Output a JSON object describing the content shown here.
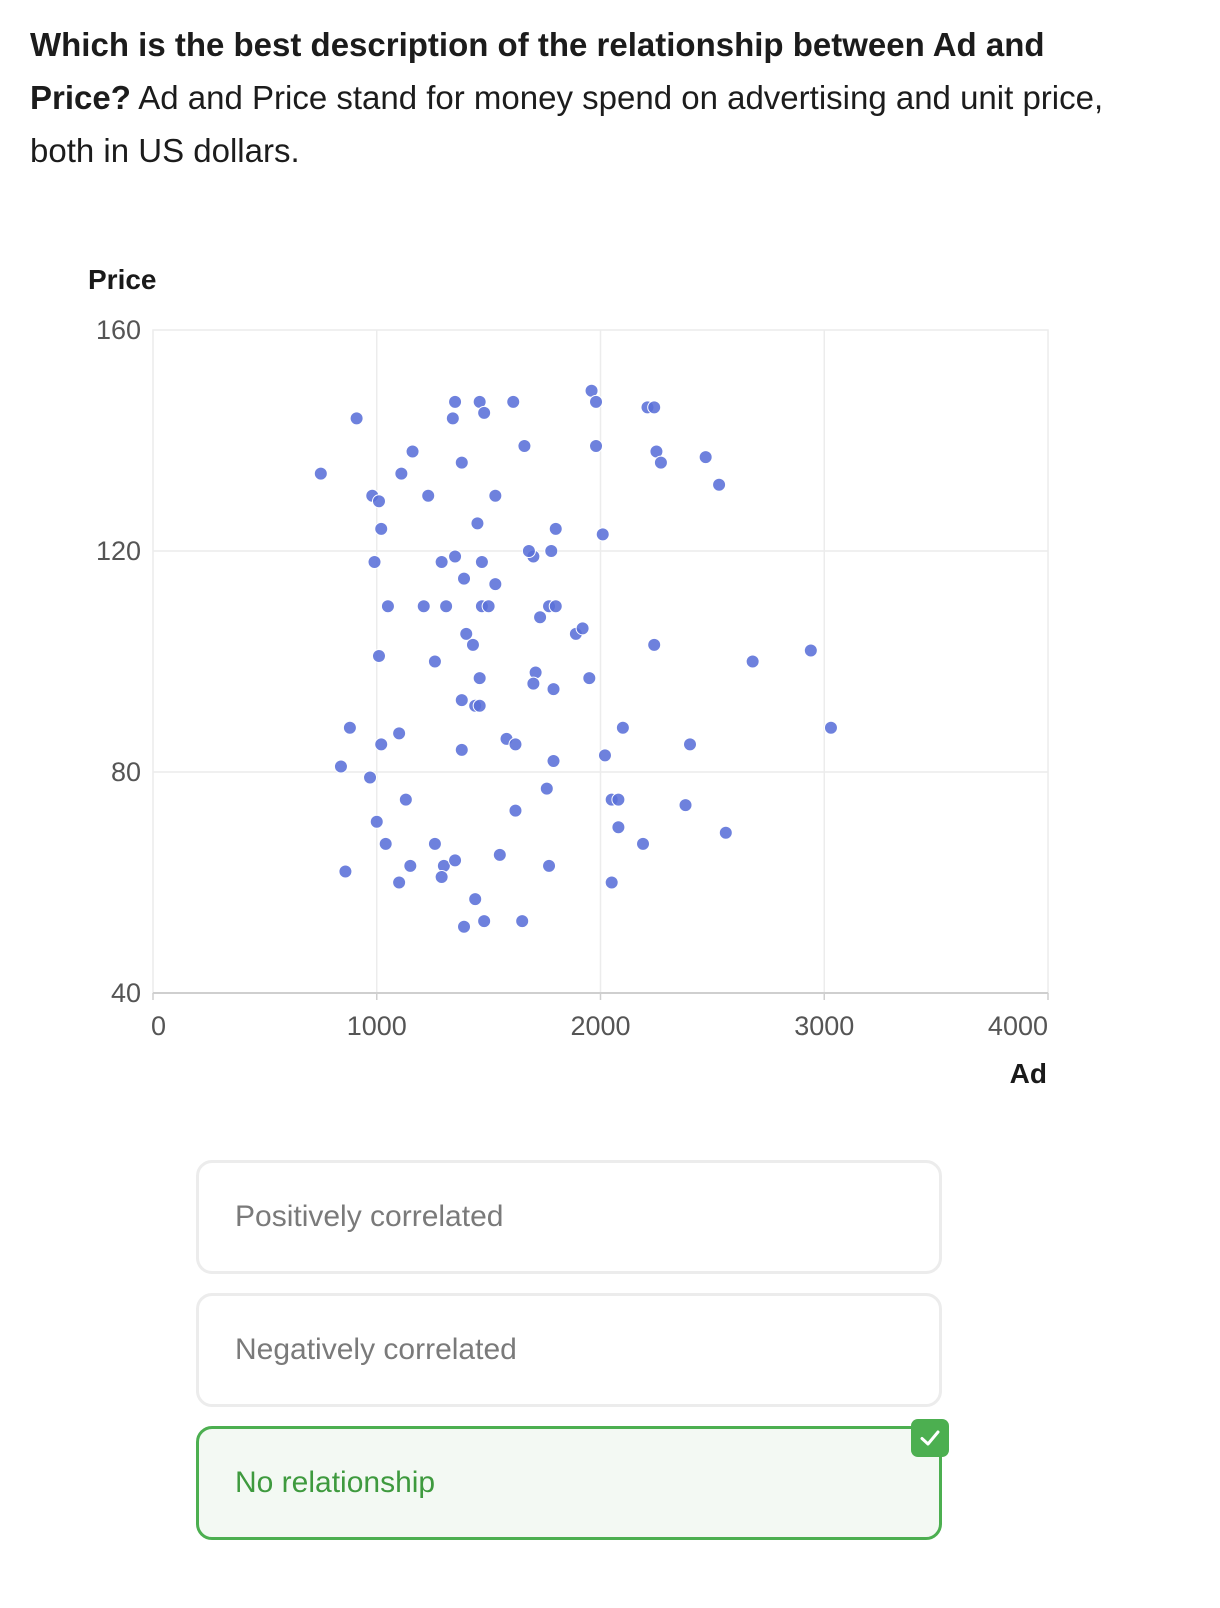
{
  "question": {
    "bold": "Which is the best description of the relationship between Ad and Price?",
    "text": " Ad and Price stand for money spend on advertising and unit price, both in US dollars."
  },
  "chart_data": {
    "type": "scatter",
    "xlabel": "Ad",
    "ylabel": "Price",
    "xlim": [
      0,
      4000
    ],
    "ylim": [
      40,
      160
    ],
    "xticks": [
      "0",
      "1000",
      "2000",
      "3000",
      "4000"
    ],
    "yticks": [
      "40",
      "80",
      "120",
      "160"
    ],
    "grid": true,
    "point_color": "#5a6fd8",
    "points": [
      [
        750,
        134
      ],
      [
        910,
        144
      ],
      [
        980,
        130
      ],
      [
        1010,
        129
      ],
      [
        1160,
        138
      ],
      [
        1110,
        134
      ],
      [
        1230,
        130
      ],
      [
        1020,
        124
      ],
      [
        990,
        118
      ],
      [
        1050,
        110
      ],
      [
        1010,
        101
      ],
      [
        1210,
        110
      ],
      [
        1310,
        110
      ],
      [
        1260,
        100
      ],
      [
        1290,
        118
      ],
      [
        1350,
        119
      ],
      [
        1390,
        115
      ],
      [
        1450,
        125
      ],
      [
        1380,
        136
      ],
      [
        1340,
        144
      ],
      [
        1350,
        147
      ],
      [
        1460,
        147
      ],
      [
        1480,
        145
      ],
      [
        1530,
        130
      ],
      [
        1610,
        147
      ],
      [
        1660,
        139
      ],
      [
        1960,
        149
      ],
      [
        1980,
        147
      ],
      [
        1980,
        139
      ],
      [
        2210,
        146
      ],
      [
        2240,
        146
      ],
      [
        2250,
        138
      ],
      [
        2270,
        136
      ],
      [
        2470,
        137
      ],
      [
        2530,
        132
      ],
      [
        2010,
        123
      ],
      [
        1780,
        120
      ],
      [
        1700,
        119
      ],
      [
        1680,
        120
      ],
      [
        1800,
        124
      ],
      [
        1470,
        118
      ],
      [
        1530,
        114
      ],
      [
        1470,
        110
      ],
      [
        1500,
        110
      ],
      [
        1770,
        110
      ],
      [
        1800,
        110
      ],
      [
        1730,
        108
      ],
      [
        1400,
        105
      ],
      [
        1430,
        103
      ],
      [
        1890,
        105
      ],
      [
        1920,
        106
      ],
      [
        2240,
        103
      ],
      [
        2680,
        100
      ],
      [
        2940,
        102
      ],
      [
        1710,
        98
      ],
      [
        1700,
        96
      ],
      [
        1790,
        95
      ],
      [
        1460,
        97
      ],
      [
        1950,
        97
      ],
      [
        1380,
        93
      ],
      [
        1440,
        92
      ],
      [
        1460,
        92
      ],
      [
        880,
        88
      ],
      [
        1020,
        85
      ],
      [
        1100,
        87
      ],
      [
        1380,
        84
      ],
      [
        1580,
        86
      ],
      [
        1620,
        85
      ],
      [
        1790,
        82
      ],
      [
        2020,
        83
      ],
      [
        2100,
        88
      ],
      [
        2400,
        85
      ],
      [
        3030,
        88
      ],
      [
        840,
        81
      ],
      [
        970,
        79
      ],
      [
        1760,
        77
      ],
      [
        1130,
        75
      ],
      [
        1620,
        73
      ],
      [
        2050,
        75
      ],
      [
        2080,
        75
      ],
      [
        2380,
        74
      ],
      [
        1000,
        71
      ],
      [
        1040,
        67
      ],
      [
        1260,
        67
      ],
      [
        1550,
        65
      ],
      [
        2080,
        70
      ],
      [
        2190,
        67
      ],
      [
        2560,
        69
      ],
      [
        860,
        62
      ],
      [
        1100,
        60
      ],
      [
        1150,
        63
      ],
      [
        1300,
        63
      ],
      [
        1290,
        61
      ],
      [
        1350,
        64
      ],
      [
        1770,
        63
      ],
      [
        2050,
        60
      ],
      [
        1440,
        57
      ],
      [
        1390,
        52
      ],
      [
        1480,
        53
      ],
      [
        1650,
        53
      ]
    ]
  },
  "options": [
    {
      "label": "Positively correlated"
    },
    {
      "label": "Negatively correlated"
    },
    {
      "label": "No relationship",
      "state": "correct"
    }
  ]
}
